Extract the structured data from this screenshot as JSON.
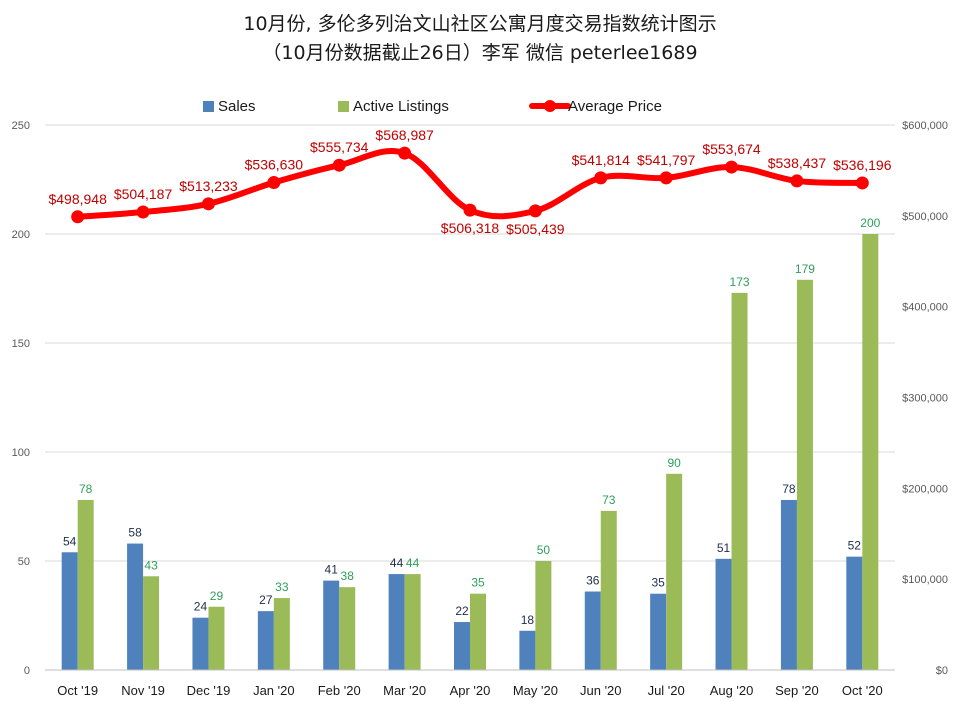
{
  "chart_data": {
    "type": "bar+line",
    "title": "10月份, 多伦多列治文山社区公寓月度交易指数统计图示",
    "subtitle": "（10月份数据截止26日）李军  微信  peterlee1689",
    "categories": [
      "Oct '19",
      "Nov '19",
      "Dec '19",
      "Jan '20",
      "Feb '20",
      "Mar '20",
      "Apr '20",
      "May '20",
      "Jun '20",
      "Jul '20",
      "Aug '20",
      "Sep '20",
      "Oct '20"
    ],
    "series": [
      {
        "name": "Sales",
        "axis": "left",
        "kind": "bar",
        "color": "#4f81bd",
        "values": [
          54,
          58,
          24,
          27,
          41,
          44,
          22,
          18,
          36,
          35,
          51,
          78,
          52
        ]
      },
      {
        "name": "Active Listings",
        "axis": "left",
        "kind": "bar",
        "color": "#9bbb59",
        "values": [
          78,
          43,
          29,
          33,
          38,
          44,
          35,
          50,
          73,
          90,
          173,
          179,
          200
        ]
      },
      {
        "name": "Average Price",
        "axis": "right",
        "kind": "line",
        "color": "#ff0000",
        "values": [
          498948,
          504187,
          513233,
          536630,
          555734,
          568987,
          506318,
          505439,
          541814,
          541797,
          553674,
          538437,
          536196
        ]
      }
    ],
    "price_labels": [
      "$498,948",
      "$504,187",
      "$513,233",
      "$536,630",
      "$555,734",
      "$568,987",
      "$506,318",
      "$505,439",
      "$541,814",
      "$541,797",
      "$553,674",
      "$538,437",
      "$536,196"
    ],
    "left_axis": {
      "min": 0,
      "max": 250,
      "ticks": [
        "0",
        "50",
        "100",
        "150",
        "200",
        "250"
      ],
      "tick_values": [
        0,
        50,
        100,
        150,
        200,
        250
      ]
    },
    "right_axis": {
      "min": 0,
      "max": 600000,
      "ticks": [
        "$0",
        "$100,000",
        "$200,000",
        "$300,000",
        "$400,000",
        "$500,000",
        "$600,000"
      ],
      "tick_values": [
        0,
        100000,
        200000,
        300000,
        400000,
        500000,
        600000
      ]
    },
    "legend": {
      "position": "top",
      "items": [
        "Sales",
        "Active Listings",
        "Average Price"
      ]
    },
    "grid": true
  }
}
